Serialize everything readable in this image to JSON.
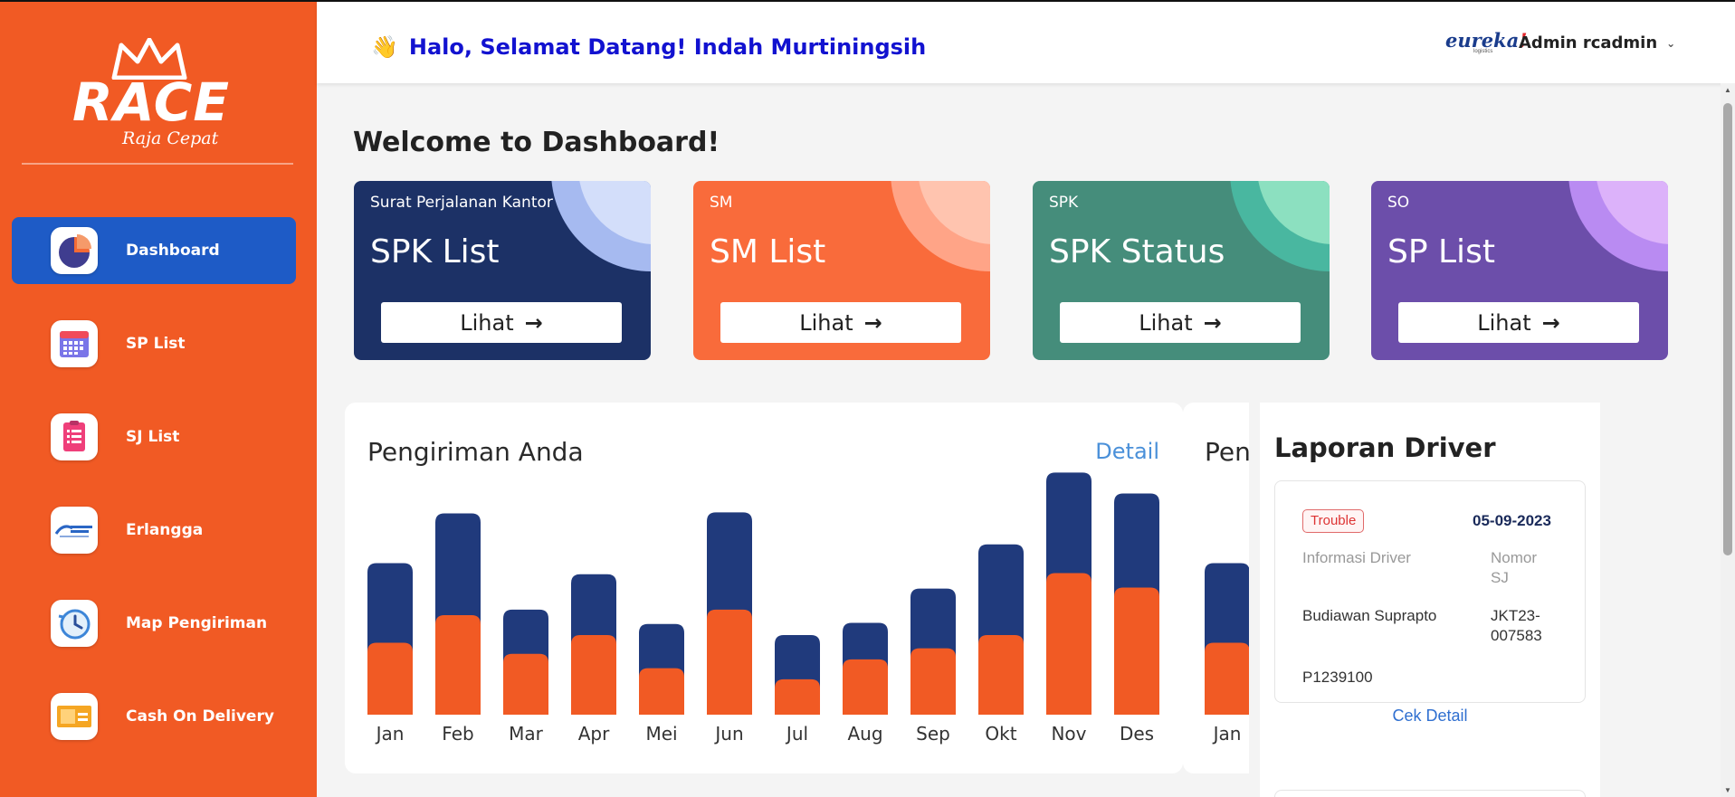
{
  "sidebar": {
    "logo": {
      "text": "RACE",
      "sub": "Raja Cepat"
    },
    "items": [
      {
        "label": "Dashboard",
        "icon": "pie-chart-icon",
        "active": true
      },
      {
        "label": "SP List",
        "icon": "calendar-icon"
      },
      {
        "label": "SJ List",
        "icon": "checklist-icon"
      },
      {
        "label": "Erlangga",
        "icon": "erlangga-logo-icon"
      },
      {
        "label": "Map Pengiriman",
        "icon": "history-clock-icon"
      },
      {
        "label": "Cash On Delivery",
        "icon": "cash-icon"
      }
    ]
  },
  "header": {
    "greeting": "Halo, Selamat Datang! Indah Murtiningsih",
    "brand": "eureka",
    "brand_bang": "!",
    "brand_sub": "logistics",
    "user": "Admin rcadmin"
  },
  "main": {
    "welcome": "Welcome to Dashboard!",
    "cards": [
      {
        "sub": "Surat Perjalanan Kantor",
        "title": "SPK List",
        "button": "Lihat",
        "color": "#1c3166",
        "c1": "#a6baf0",
        "c2": "#d3defa"
      },
      {
        "sub": "SM",
        "title": "SM List",
        "button": "Lihat",
        "color": "#f96b3b",
        "c1": "#ffa487",
        "c2": "#ffc4af"
      },
      {
        "sub": "SPK",
        "title": "SPK Status",
        "button": "Lihat",
        "color": "#458d7b",
        "c1": "#49b7a0",
        "c2": "#8ce0c0"
      },
      {
        "sub": "SO",
        "title": "SP List",
        "button": "Lihat",
        "color": "#6c4eaa",
        "c1": "#b98bf2",
        "c2": "#dcb2fa"
      }
    ]
  },
  "chart": {
    "title": "Pengiriman Anda",
    "detail": "Detail"
  },
  "chart2": {
    "title": "Pengiriman"
  },
  "chart_data": {
    "type": "bar",
    "stacked": true,
    "categories": [
      "Jan",
      "Feb",
      "Mar",
      "Apr",
      "Mei",
      "Jun",
      "Jul",
      "Aug",
      "Sep",
      "Okt",
      "Nov",
      "Des"
    ],
    "series": [
      {
        "color": "#f15a24",
        "values": [
          65,
          90,
          55,
          72,
          42,
          95,
          32,
          50,
          60,
          72,
          128,
          115
        ]
      },
      {
        "color": "#203a7c",
        "values": [
          72,
          92,
          40,
          55,
          40,
          88,
          40,
          33,
          54,
          82,
          91,
          85
        ]
      }
    ],
    "ylim": [
      0,
      225
    ],
    "grid": false,
    "legend": "none"
  },
  "report": {
    "title": "Laporan Driver",
    "badge": "Trouble",
    "date": "05-09-2023",
    "label_driver": "Informasi Driver",
    "label_nomor_1": "Nomor",
    "label_nomor_2": "SJ",
    "driver": "Budiawan Suprapto",
    "sj_1": "JKT23-",
    "sj_2": "007583",
    "plate": "P1239100",
    "cek": "Cek Detail"
  }
}
